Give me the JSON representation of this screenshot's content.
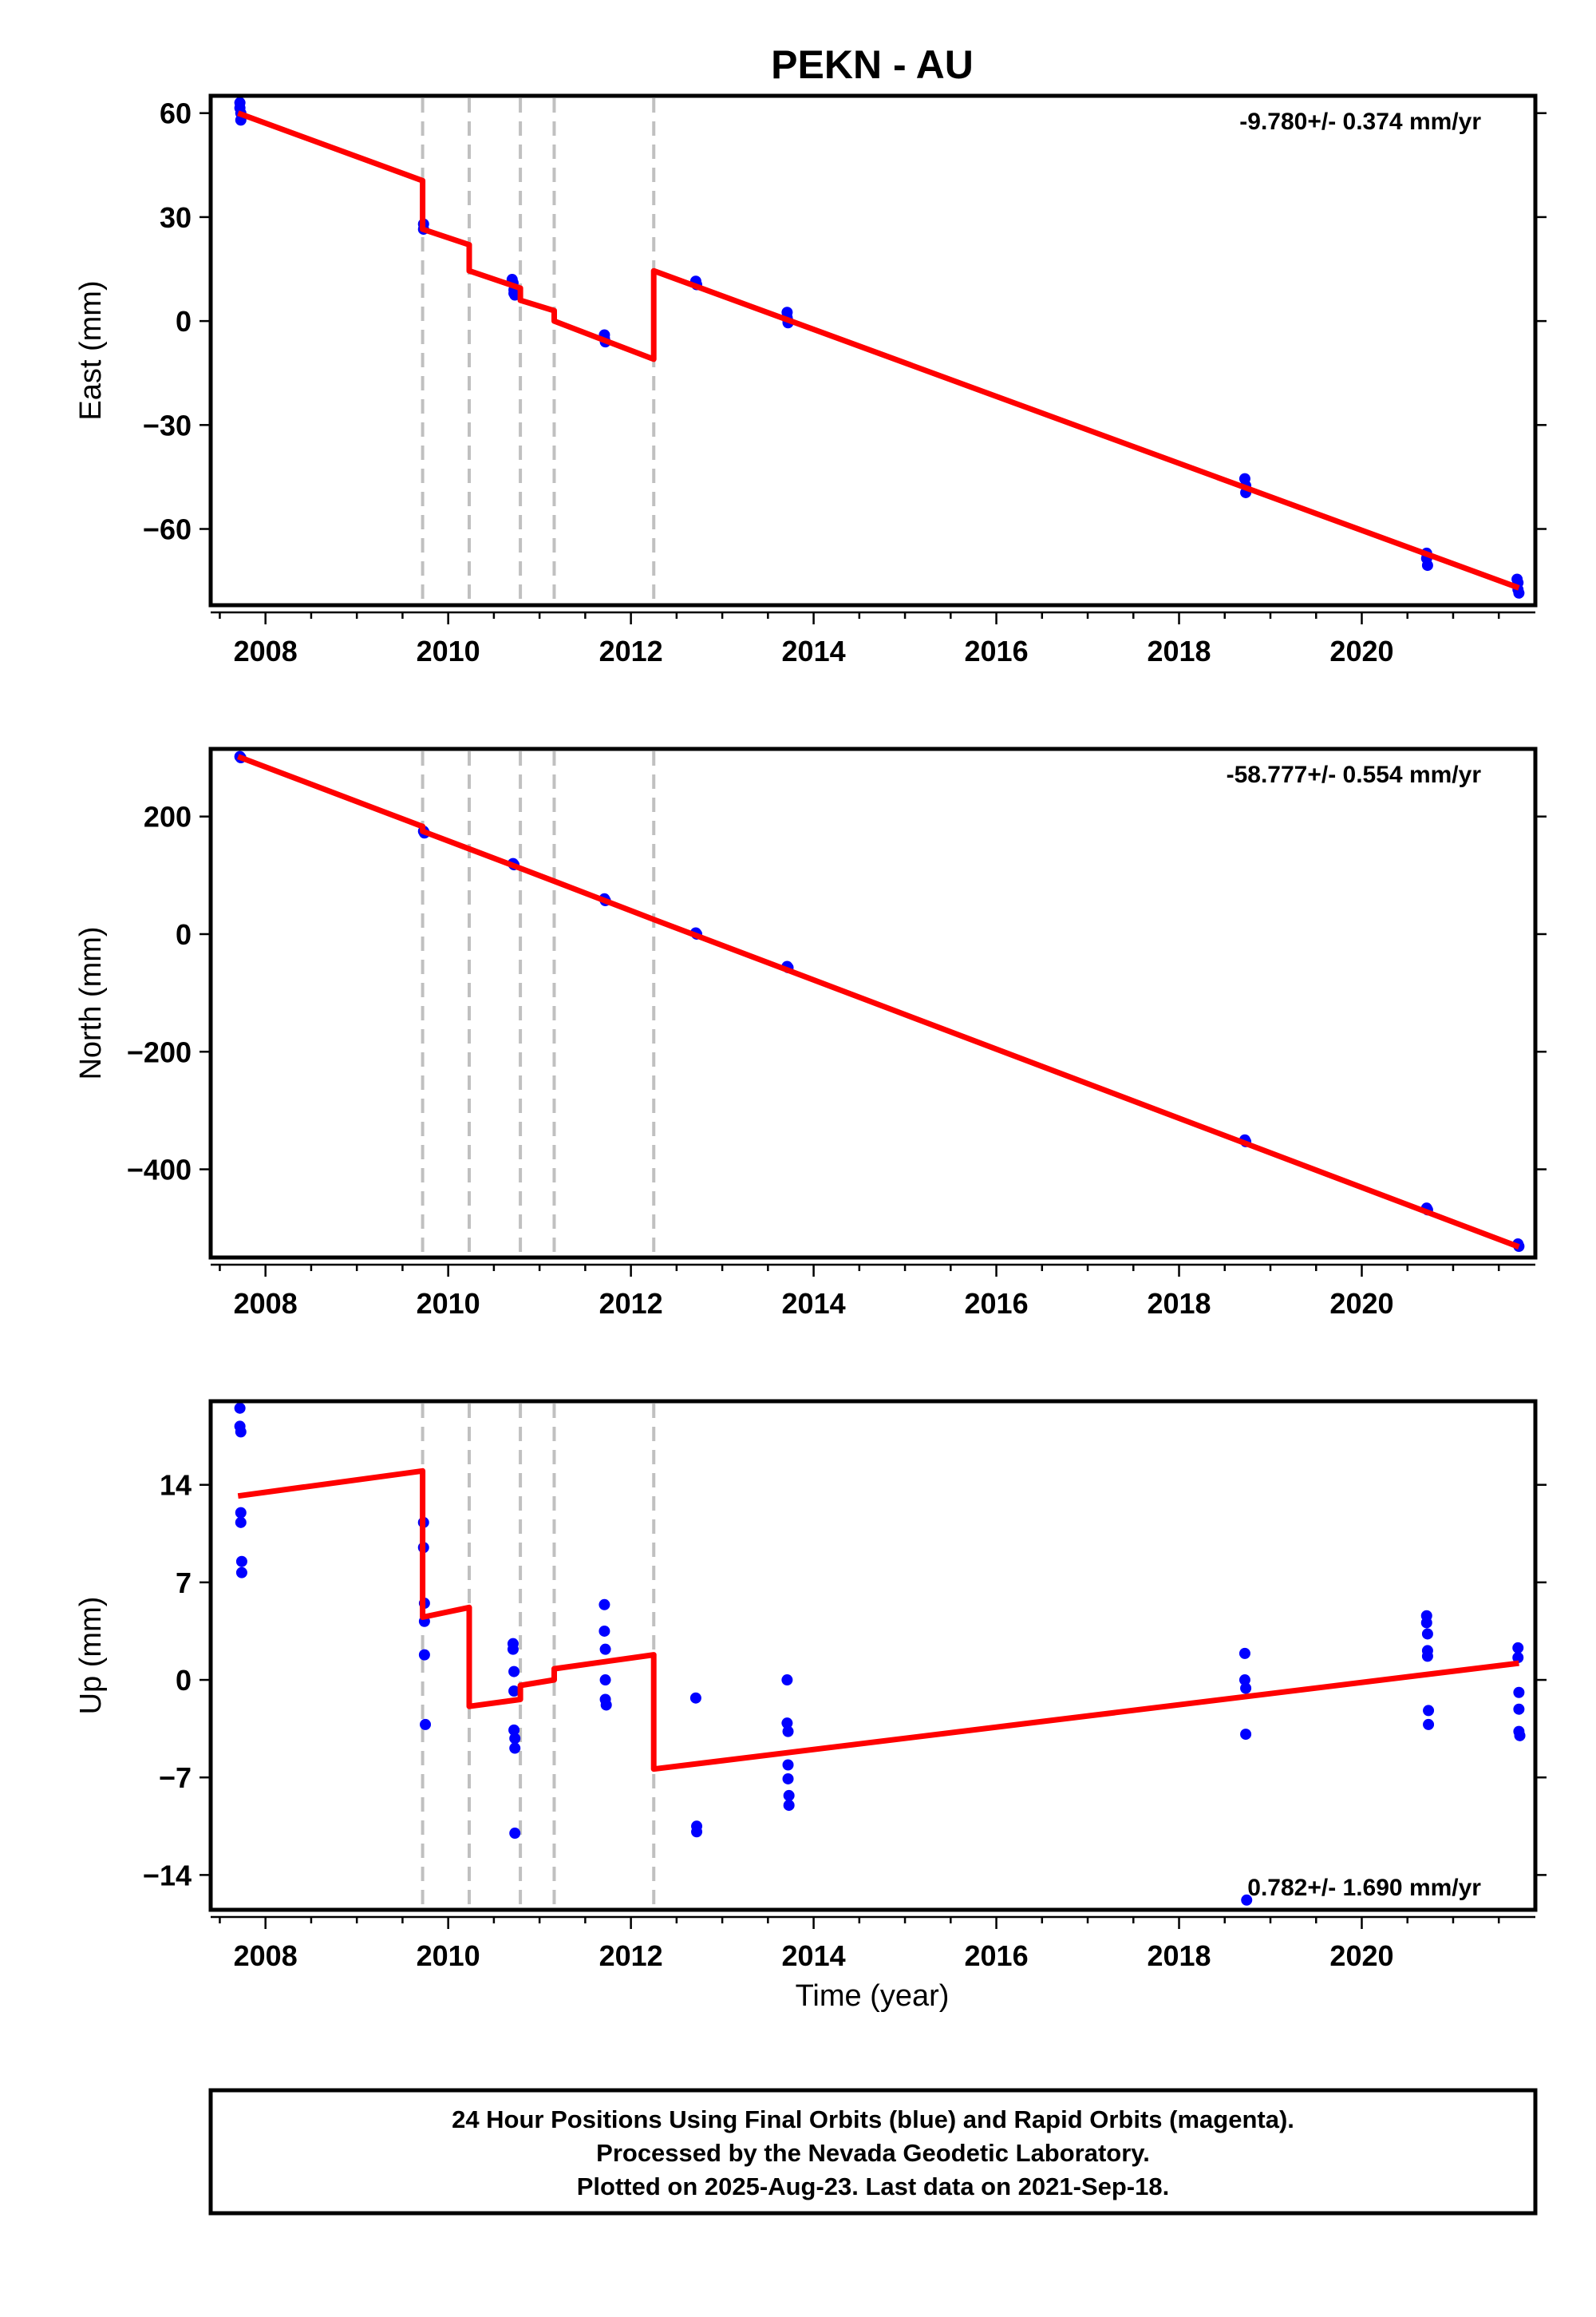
{
  "title": "PEKN - AU",
  "xlabel": "Time (year)",
  "footer": {
    "line1": "24 Hour Positions Using Final Orbits (blue) and Rapid Orbits (magenta).",
    "line2": "Processed by the Nevada Geodetic Laboratory.",
    "line3": "Plotted on 2025-Aug-23. Last data on 2021-Sep-18."
  },
  "colors": {
    "data": "#0000ff",
    "model": "#ff0000",
    "breaks": "#c0c0c0"
  },
  "chart_data": [
    {
      "type": "scatter",
      "component": "East",
      "ylabel": "East (mm)",
      "rate_label": "-9.780+/- 0.374 mm/yr",
      "rate_position": "top-right",
      "xlim": [
        2007.4,
        2021.9
      ],
      "ylim": [
        -82,
        65
      ],
      "yticks": [
        60,
        30,
        0,
        -30,
        -60
      ],
      "ytick_labels": [
        "60",
        "30",
        "0",
        "−30",
        "−60"
      ],
      "xticks": [
        2008,
        2010,
        2012,
        2014,
        2016,
        2018,
        2020
      ],
      "xtick_labels": [
        "2008",
        "2010",
        "2012",
        "2014",
        "2016",
        "2018",
        "2020"
      ],
      "breaks": [
        2009.72,
        2010.23,
        2010.79,
        2011.16,
        2012.25
      ],
      "model": [
        {
          "x": 2007.7,
          "y": 60
        },
        {
          "x": 2009.72,
          "y": 40.5
        },
        {
          "x": 2009.72,
          "y": 26.5
        },
        {
          "x": 2010.23,
          "y": 22
        },
        {
          "x": 2010.23,
          "y": 14.5
        },
        {
          "x": 2010.79,
          "y": 9.5
        },
        {
          "x": 2010.79,
          "y": 6
        },
        {
          "x": 2011.16,
          "y": 3
        },
        {
          "x": 2011.16,
          "y": 0
        },
        {
          "x": 2012.25,
          "y": -11
        },
        {
          "x": 2012.25,
          "y": 14.5
        },
        {
          "x": 2021.72,
          "y": -77
        }
      ],
      "points": [
        {
          "x": 2007.72,
          "y": 63
        },
        {
          "x": 2007.72,
          "y": 61.5
        },
        {
          "x": 2007.73,
          "y": 60
        },
        {
          "x": 2007.73,
          "y": 58
        },
        {
          "x": 2009.73,
          "y": 28
        },
        {
          "x": 2009.73,
          "y": 26.5
        },
        {
          "x": 2010.7,
          "y": 12
        },
        {
          "x": 2010.71,
          "y": 11
        },
        {
          "x": 2010.72,
          "y": 9
        },
        {
          "x": 2010.72,
          "y": 8
        },
        {
          "x": 2010.73,
          "y": 7.5
        },
        {
          "x": 2011.71,
          "y": -4
        },
        {
          "x": 2011.71,
          "y": -5
        },
        {
          "x": 2011.72,
          "y": -6
        },
        {
          "x": 2012.71,
          "y": 11.5
        },
        {
          "x": 2012.72,
          "y": 10.5
        },
        {
          "x": 2013.71,
          "y": 2.5
        },
        {
          "x": 2013.71,
          "y": 1
        },
        {
          "x": 2013.72,
          "y": 0
        },
        {
          "x": 2013.72,
          "y": -0.5
        },
        {
          "x": 2018.72,
          "y": -45.5
        },
        {
          "x": 2018.73,
          "y": -47.5
        },
        {
          "x": 2018.73,
          "y": -49.5
        },
        {
          "x": 2020.71,
          "y": -67
        },
        {
          "x": 2020.71,
          "y": -68.5
        },
        {
          "x": 2020.72,
          "y": -70.5
        },
        {
          "x": 2021.7,
          "y": -74.5
        },
        {
          "x": 2021.71,
          "y": -75.5
        },
        {
          "x": 2021.71,
          "y": -77.5
        },
        {
          "x": 2021.72,
          "y": -78.5
        }
      ]
    },
    {
      "type": "scatter",
      "component": "North",
      "ylabel": "North (mm)",
      "rate_label": "-58.777+/- 0.554 mm/yr",
      "rate_position": "top-right",
      "xlim": [
        2007.4,
        2021.9
      ],
      "ylim": [
        -550,
        315
      ],
      "yticks": [
        200,
        0,
        -200,
        -400
      ],
      "ytick_labels": [
        "200",
        "0",
        "−200",
        "−400"
      ],
      "xticks": [
        2008,
        2010,
        2012,
        2014,
        2016,
        2018,
        2020
      ],
      "xtick_labels": [
        "2008",
        "2010",
        "2012",
        "2014",
        "2016",
        "2018",
        "2020"
      ],
      "breaks": [
        2009.72,
        2010.23,
        2010.79,
        2011.16,
        2012.25
      ],
      "model": [
        {
          "x": 2007.7,
          "y": 302
        },
        {
          "x": 2009.72,
          "y": 183
        },
        {
          "x": 2009.72,
          "y": 175
        },
        {
          "x": 2010.23,
          "y": 145
        },
        {
          "x": 2010.79,
          "y": 112
        },
        {
          "x": 2011.16,
          "y": 90
        },
        {
          "x": 2012.25,
          "y": 25
        },
        {
          "x": 2021.72,
          "y": -532
        }
      ],
      "points": [
        {
          "x": 2007.72,
          "y": 302
        },
        {
          "x": 2007.73,
          "y": 300
        },
        {
          "x": 2009.73,
          "y": 175
        },
        {
          "x": 2009.74,
          "y": 172
        },
        {
          "x": 2010.71,
          "y": 120
        },
        {
          "x": 2010.72,
          "y": 118
        },
        {
          "x": 2011.71,
          "y": 60
        },
        {
          "x": 2011.72,
          "y": 57
        },
        {
          "x": 2012.71,
          "y": 2
        },
        {
          "x": 2012.72,
          "y": 0
        },
        {
          "x": 2013.71,
          "y": -55
        },
        {
          "x": 2013.72,
          "y": -57
        },
        {
          "x": 2018.72,
          "y": -350
        },
        {
          "x": 2018.73,
          "y": -353
        },
        {
          "x": 2020.71,
          "y": -466
        },
        {
          "x": 2020.72,
          "y": -469
        },
        {
          "x": 2021.71,
          "y": -527
        },
        {
          "x": 2021.72,
          "y": -531
        }
      ]
    },
    {
      "type": "scatter",
      "component": "Up",
      "ylabel": "Up (mm)",
      "rate_label": "0.782+/- 1.690 mm/yr",
      "rate_position": "bottom-right",
      "xlim": [
        2007.4,
        2021.9
      ],
      "ylim": [
        -16.5,
        20
      ],
      "yticks": [
        14,
        7,
        0,
        -7,
        -14
      ],
      "ytick_labels": [
        "14",
        "7",
        "0",
        "−7",
        "−14"
      ],
      "xticks": [
        2008,
        2010,
        2012,
        2014,
        2016,
        2018,
        2020
      ],
      "xtick_labels": [
        "2008",
        "2010",
        "2012",
        "2014",
        "2016",
        "2018",
        "2020"
      ],
      "breaks": [
        2009.72,
        2010.23,
        2010.79,
        2011.16,
        2012.25
      ],
      "model": [
        {
          "x": 2007.7,
          "y": 13.2
        },
        {
          "x": 2009.72,
          "y": 15
        },
        {
          "x": 2009.72,
          "y": 4.5
        },
        {
          "x": 2010.23,
          "y": 5.2
        },
        {
          "x": 2010.23,
          "y": -1.9
        },
        {
          "x": 2010.79,
          "y": -1.4
        },
        {
          "x": 2010.79,
          "y": -0.4
        },
        {
          "x": 2011.16,
          "y": 0
        },
        {
          "x": 2011.16,
          "y": 0.8
        },
        {
          "x": 2012.25,
          "y": 1.8
        },
        {
          "x": 2012.25,
          "y": -6.4
        },
        {
          "x": 2021.72,
          "y": 1.2
        }
      ],
      "points": [
        {
          "x": 2007.72,
          "y": 19.5
        },
        {
          "x": 2007.72,
          "y": 18.2
        },
        {
          "x": 2007.73,
          "y": 17.8
        },
        {
          "x": 2007.73,
          "y": 12
        },
        {
          "x": 2007.73,
          "y": 11.3
        },
        {
          "x": 2007.74,
          "y": 8.5
        },
        {
          "x": 2007.74,
          "y": 7.7
        },
        {
          "x": 2009.73,
          "y": 11.3
        },
        {
          "x": 2009.73,
          "y": 9.5
        },
        {
          "x": 2009.74,
          "y": 5.5
        },
        {
          "x": 2009.74,
          "y": 4.2
        },
        {
          "x": 2009.74,
          "y": 1.8
        },
        {
          "x": 2009.75,
          "y": -3.2
        },
        {
          "x": 2010.71,
          "y": 2.6
        },
        {
          "x": 2010.71,
          "y": 2.2
        },
        {
          "x": 2010.72,
          "y": 0.6
        },
        {
          "x": 2010.72,
          "y": -0.8
        },
        {
          "x": 2010.72,
          "y": -3.6
        },
        {
          "x": 2010.73,
          "y": -4.2
        },
        {
          "x": 2010.73,
          "y": -4.9
        },
        {
          "x": 2010.73,
          "y": -11
        },
        {
          "x": 2011.71,
          "y": 5.4
        },
        {
          "x": 2011.71,
          "y": 3.5
        },
        {
          "x": 2011.72,
          "y": 2.2
        },
        {
          "x": 2011.72,
          "y": 0
        },
        {
          "x": 2011.72,
          "y": -1.4
        },
        {
          "x": 2011.73,
          "y": -1.8
        },
        {
          "x": 2012.71,
          "y": -1.3
        },
        {
          "x": 2012.72,
          "y": -10.5
        },
        {
          "x": 2012.72,
          "y": -10.9
        },
        {
          "x": 2013.71,
          "y": 0
        },
        {
          "x": 2013.71,
          "y": -3.1
        },
        {
          "x": 2013.72,
          "y": -3.7
        },
        {
          "x": 2013.72,
          "y": -6.1
        },
        {
          "x": 2013.72,
          "y": -7.1
        },
        {
          "x": 2013.73,
          "y": -8.3
        },
        {
          "x": 2013.73,
          "y": -9
        },
        {
          "x": 2018.72,
          "y": 1.9
        },
        {
          "x": 2018.72,
          "y": 0
        },
        {
          "x": 2018.73,
          "y": -0.6
        },
        {
          "x": 2018.73,
          "y": -3.9
        },
        {
          "x": 2018.74,
          "y": -15.8
        },
        {
          "x": 2020.71,
          "y": 4.6
        },
        {
          "x": 2020.71,
          "y": 4.1
        },
        {
          "x": 2020.72,
          "y": 3.3
        },
        {
          "x": 2020.72,
          "y": 2.1
        },
        {
          "x": 2020.72,
          "y": 1.7
        },
        {
          "x": 2020.73,
          "y": -2.2
        },
        {
          "x": 2020.73,
          "y": -3.2
        },
        {
          "x": 2021.71,
          "y": 2.3
        },
        {
          "x": 2021.71,
          "y": 1.6
        },
        {
          "x": 2021.72,
          "y": -0.9
        },
        {
          "x": 2021.72,
          "y": -2.1
        },
        {
          "x": 2021.72,
          "y": -3.7
        },
        {
          "x": 2021.73,
          "y": -4
        }
      ]
    }
  ]
}
